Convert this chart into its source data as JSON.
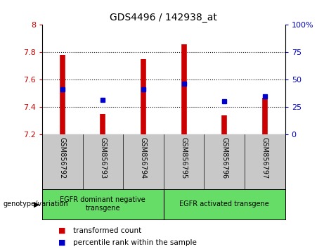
{
  "title": "GDS4496 / 142938_at",
  "samples": [
    "GSM856792",
    "GSM856793",
    "GSM856794",
    "GSM856795",
    "GSM856796",
    "GSM856797"
  ],
  "bar_base": 7.2,
  "bar_tops": [
    7.78,
    7.35,
    7.75,
    7.86,
    7.34,
    7.47
  ],
  "percentile_values": [
    7.53,
    7.45,
    7.53,
    7.57,
    7.44,
    7.48
  ],
  "ylim_left": [
    7.2,
    8.0
  ],
  "ylim_right": [
    0,
    100
  ],
  "yticks_left": [
    7.2,
    7.4,
    7.6,
    7.8,
    8.0
  ],
  "yticks_right": [
    0,
    25,
    50,
    75,
    100
  ],
  "ytick_labels_left": [
    "7.2",
    "7.4",
    "7.6",
    "7.8",
    "8"
  ],
  "ytick_labels_right": [
    "0",
    "25",
    "50",
    "75",
    "100%"
  ],
  "bar_color": "#cc0000",
  "dot_color": "#0000cc",
  "bg_color": "#ffffff",
  "group1_samples": [
    0,
    1,
    2
  ],
  "group2_samples": [
    3,
    4,
    5
  ],
  "group1_label": "EGFR dominant negative\ntransgene",
  "group2_label": "EGFR activated transgene",
  "group_bg_color": "#66dd66",
  "sample_area_color": "#c8c8c8",
  "legend_red_label": "transformed count",
  "legend_blue_label": "percentile rank within the sample",
  "genotype_label": "genotype/variation"
}
